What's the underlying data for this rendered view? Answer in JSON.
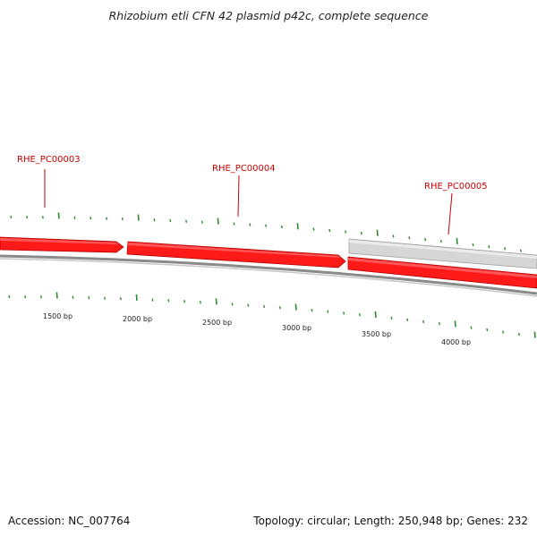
{
  "title": "Rhizobium etli CFN 42 plasmid p42c, complete sequence",
  "footer": {
    "accession": "Accession: NC_007764",
    "summary": "Topology: circular; Length: 250,948 bp; Genes: 232"
  },
  "genes": [
    {
      "label": "RHE_PC00003",
      "color": "#cc0000"
    },
    {
      "label": "RHE_PC00004",
      "color": "#cc0000"
    },
    {
      "label": "RHE_PC00005",
      "color": "#cc0000"
    }
  ],
  "scale": {
    "labels": [
      "1500 bp",
      "2000 bp",
      "2500 bp",
      "3000 bp",
      "3500 bp",
      "4000 bp"
    ]
  },
  "colors": {
    "gene_fill": "#ff1a1a",
    "gene_shade": "#b30000",
    "selected_fill": "#d6d6d6",
    "backbone": "#8a8a8a",
    "tick": "#2e8b2e",
    "label": "#cc0000"
  }
}
